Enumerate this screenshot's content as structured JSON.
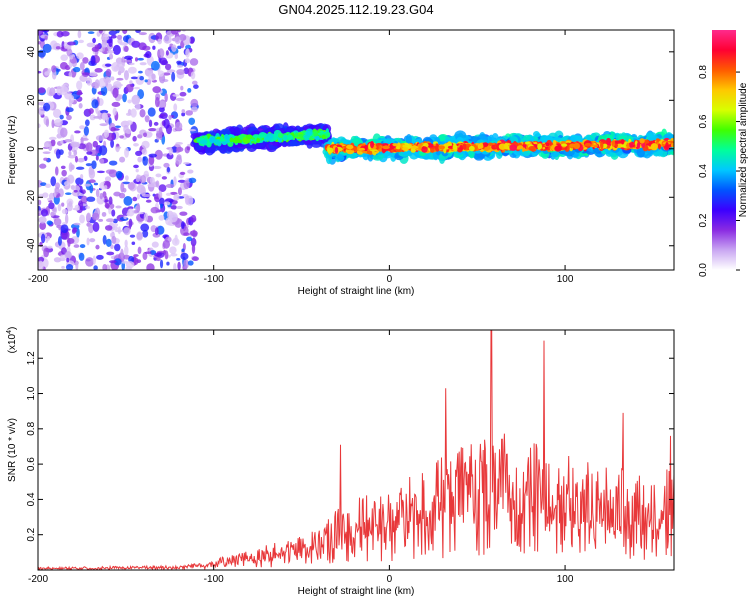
{
  "figure": {
    "title": "GN04.2025.112.19.23.G04"
  },
  "chart_data": [
    {
      "type": "heatmap",
      "title": "GN04.2025.112.19.23.G04",
      "xlabel": "Height of straight line (km)",
      "ylabel": "Frequency (Hz)",
      "xlim": [
        -200,
        162
      ],
      "ylim": [
        -50,
        49
      ],
      "xticks": [
        -200,
        -100,
        0,
        100
      ],
      "yticks": [
        -40,
        -20,
        0,
        20,
        40
      ],
      "colorbar": {
        "label": "Normalized spectral amplitude",
        "range": [
          0,
          0.97
        ],
        "ticks": [
          0.0,
          0.2,
          0.4,
          0.6,
          0.8
        ],
        "colors": [
          "#ffffff",
          "#c9a6f2",
          "#8a2be2",
          "#3b00ff",
          "#0055ff",
          "#00c8ff",
          "#00ff9a",
          "#40ff00",
          "#d8ff00",
          "#ffc800",
          "#ff5a00",
          "#ff0033",
          "#ff2a8c"
        ]
      },
      "grid": false,
      "regions": [
        {
          "x_range": [
            -200,
            -110
          ],
          "freq_range": [
            -50,
            49
          ],
          "amplitude": [
            0.05,
            0.35
          ],
          "note_level": "diffuse noise"
        },
        {
          "x_range": [
            -110,
            -35
          ],
          "center_freq": [
            3,
            6
          ],
          "amplitude": [
            0.3,
            0.6
          ]
        },
        {
          "x_range": [
            -35,
            162
          ],
          "center_freq": [
            0,
            2
          ],
          "amplitude": [
            0.5,
            0.95
          ]
        }
      ]
    },
    {
      "type": "line",
      "xlabel": "Height of straight line (km)",
      "ylabel": "SNR (10 * v/v)",
      "y_multiplier_label": "(x10",
      "y_multiplier_exp": "4",
      "xlim": [
        -200,
        162
      ],
      "ylim": [
        0,
        13600
      ],
      "xticks": [
        -200,
        -100,
        0,
        100
      ],
      "yticks": [
        2000,
        4000,
        6000,
        8000,
        10000,
        12000
      ],
      "ytick_labels": [
        "0.2",
        "0.4",
        "0.6",
        "0.8",
        "1.0",
        "1.2"
      ],
      "color": "#e8383a",
      "grid": false,
      "envelope": [
        {
          "x": -200,
          "y": 150
        },
        {
          "x": -120,
          "y": 250
        },
        {
          "x": -100,
          "y": 600
        },
        {
          "x": -80,
          "y": 1100
        },
        {
          "x": -60,
          "y": 1700
        },
        {
          "x": -40,
          "y": 2300
        },
        {
          "x": -25,
          "y": 4000
        },
        {
          "x": 0,
          "y": 4500
        },
        {
          "x": 30,
          "y": 6500
        },
        {
          "x": 60,
          "y": 8000
        },
        {
          "x": 90,
          "y": 7000
        },
        {
          "x": 120,
          "y": 6000
        },
        {
          "x": 150,
          "y": 5500
        },
        {
          "x": 162,
          "y": 6000
        }
      ],
      "peaks": [
        {
          "x": -28,
          "y": 7100
        },
        {
          "x": 32,
          "y": 10300
        },
        {
          "x": 58,
          "y": 13700
        },
        {
          "x": 88,
          "y": 13000
        },
        {
          "x": 133,
          "y": 8900
        },
        {
          "x": 160,
          "y": 7600
        }
      ]
    }
  ]
}
